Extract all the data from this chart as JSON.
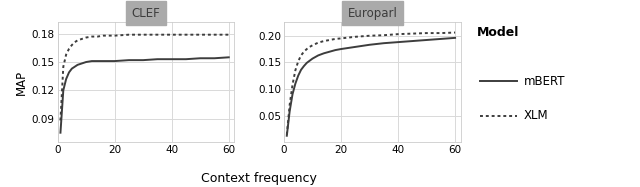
{
  "clef_mbert_x": [
    1,
    2,
    3,
    4,
    5,
    6,
    7,
    8,
    9,
    10,
    12,
    14,
    16,
    18,
    20,
    25,
    30,
    35,
    40,
    45,
    50,
    55,
    60
  ],
  "clef_mbert_y": [
    0.075,
    0.12,
    0.132,
    0.139,
    0.143,
    0.145,
    0.147,
    0.148,
    0.149,
    0.15,
    0.151,
    0.151,
    0.151,
    0.151,
    0.151,
    0.152,
    0.152,
    0.153,
    0.153,
    0.153,
    0.154,
    0.154,
    0.155
  ],
  "clef_xlm_x": [
    1,
    2,
    3,
    4,
    5,
    6,
    7,
    8,
    9,
    10,
    12,
    14,
    16,
    18,
    20,
    25,
    30,
    35,
    40,
    45,
    50,
    55,
    60
  ],
  "clef_xlm_y": [
    0.088,
    0.145,
    0.158,
    0.164,
    0.168,
    0.171,
    0.173,
    0.174,
    0.175,
    0.176,
    0.177,
    0.177,
    0.178,
    0.178,
    0.178,
    0.179,
    0.179,
    0.179,
    0.179,
    0.179,
    0.179,
    0.179,
    0.179
  ],
  "europarl_mbert_x": [
    1,
    2,
    3,
    4,
    5,
    6,
    7,
    8,
    9,
    10,
    12,
    14,
    16,
    18,
    20,
    25,
    30,
    35,
    40,
    45,
    50,
    55,
    60
  ],
  "europarl_mbert_y": [
    0.012,
    0.058,
    0.09,
    0.11,
    0.125,
    0.136,
    0.143,
    0.149,
    0.153,
    0.157,
    0.163,
    0.167,
    0.17,
    0.173,
    0.175,
    0.179,
    0.183,
    0.186,
    0.188,
    0.19,
    0.192,
    0.194,
    0.196
  ],
  "europarl_xlm_x": [
    1,
    2,
    3,
    4,
    5,
    6,
    7,
    8,
    9,
    10,
    12,
    14,
    16,
    18,
    20,
    25,
    30,
    35,
    40,
    45,
    50,
    55,
    60
  ],
  "europarl_xlm_y": [
    0.014,
    0.07,
    0.108,
    0.135,
    0.152,
    0.163,
    0.17,
    0.175,
    0.179,
    0.182,
    0.187,
    0.19,
    0.192,
    0.194,
    0.195,
    0.198,
    0.2,
    0.201,
    0.203,
    0.204,
    0.205,
    0.205,
    0.206
  ],
  "clef_ylim": [
    0.065,
    0.192
  ],
  "clef_yticks": [
    0.09,
    0.12,
    0.15,
    0.18
  ],
  "europarl_ylim": [
    0.0,
    0.225
  ],
  "europarl_yticks": [
    0.05,
    0.1,
    0.15,
    0.2
  ],
  "xlim": [
    0,
    62
  ],
  "xticks": [
    0,
    20,
    40,
    60
  ],
  "line_color": "#3d3d3d",
  "panel_header_color": "#aaaaaa",
  "panel_header_text_color": "#3d3d3d",
  "grid_color": "#d9d9d9",
  "spine_color": "#cccccc",
  "background_color": "#ffffff",
  "clef_title": "CLEF",
  "europarl_title": "Europarl",
  "xlabel": "Context frequency",
  "ylabel": "MAP",
  "legend_title": "Model",
  "legend_mbert": "mBERT",
  "legend_xlm": "XLM"
}
